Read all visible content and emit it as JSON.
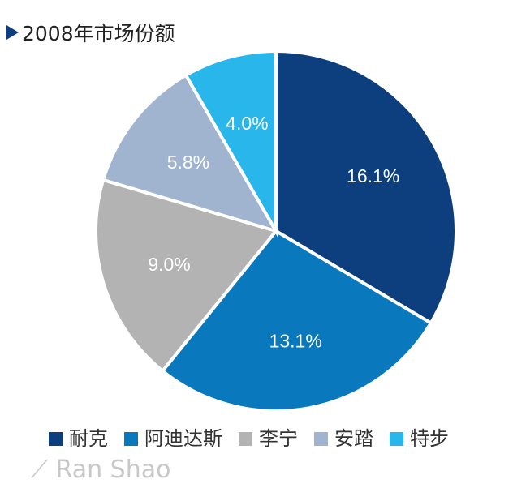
{
  "chart_data": {
    "type": "pie",
    "title": "2008年市场份额",
    "categories": [
      "耐克",
      "阿迪达斯",
      "李宁",
      "安踏",
      "特步"
    ],
    "values": [
      16.1,
      13.1,
      9.0,
      5.8,
      4.0
    ],
    "labels": [
      "16.1%",
      "13.1%",
      "9.0%",
      "5.8%",
      "4.0%"
    ],
    "colors": [
      "#0d3f7e",
      "#0a78bd",
      "#b3b3b3",
      "#a0b4d0",
      "#29b6ea"
    ],
    "start": "top",
    "direction": "clockwise",
    "legend": "bottom"
  },
  "watermark": "Ran Shao"
}
